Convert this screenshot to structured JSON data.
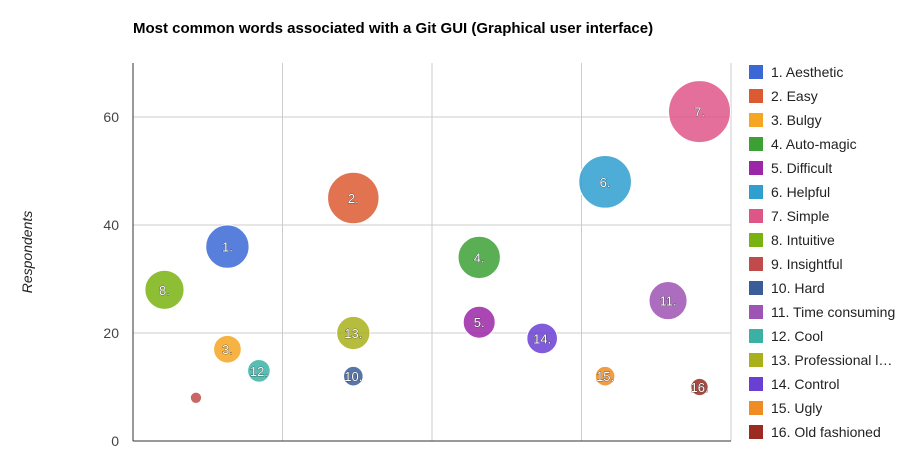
{
  "chart_data": {
    "type": "bubble",
    "title": "Most common words associated with a Git GUI (Graphical user interface)",
    "ylabel": "Respondents",
    "xlabel": "",
    "ylim": [
      0,
      70
    ],
    "xlim": [
      0,
      190
    ],
    "yticks": [
      "0",
      "20",
      "40",
      "60"
    ],
    "grid": true,
    "legend_position": "right",
    "series": [
      {
        "label": "1.",
        "name": "1. Aesthetic",
        "x": 30,
        "y": 36,
        "size": 44,
        "color": "#3c68d6"
      },
      {
        "label": "2.",
        "name": "2. Easy",
        "x": 70,
        "y": 45,
        "size": 62,
        "color": "#dc5a32"
      },
      {
        "label": "3.",
        "name": "3. Bulgy",
        "x": 30,
        "y": 17,
        "size": 18,
        "color": "#f5a623"
      },
      {
        "label": "4.",
        "name": "4. Auto-magic",
        "x": 110,
        "y": 34,
        "size": 42,
        "color": "#3da035"
      },
      {
        "label": "5.",
        "name": "5. Difficult",
        "x": 110,
        "y": 22,
        "size": 24,
        "color": "#9b27a8"
      },
      {
        "label": "6.",
        "name": "6. Helpful",
        "x": 150,
        "y": 48,
        "size": 65,
        "color": "#2f9fcf"
      },
      {
        "label": "7.",
        "name": "7. Simple",
        "x": 180,
        "y": 61,
        "size": 90,
        "color": "#de5688"
      },
      {
        "label": "8.",
        "name": "8. Intuitive",
        "x": 10,
        "y": 28,
        "size": 36,
        "color": "#79b311"
      },
      {
        "label": "9.",
        "name": "9. Insightful",
        "x": 20,
        "y": 8,
        "size": 3,
        "color": "#c14b4b"
      },
      {
        "label": "10.",
        "name": "10. Hard",
        "x": 70,
        "y": 12,
        "size": 9,
        "color": "#3a5d9a"
      },
      {
        "label": "11.",
        "name": "11. Time consuming",
        "x": 170,
        "y": 26,
        "size": 34,
        "color": "#9e54b4"
      },
      {
        "label": "12.",
        "name": "12. Cool",
        "x": 40,
        "y": 13,
        "size": 12,
        "color": "#3bb1a6"
      },
      {
        "label": "13.",
        "name": "13. Professional l…",
        "x": 70,
        "y": 20,
        "size": 26,
        "color": "#a9b01c"
      },
      {
        "label": "14.",
        "name": "14. Control",
        "x": 130,
        "y": 19,
        "size": 22,
        "color": "#6a3fd4"
      },
      {
        "label": "15.",
        "name": "15. Ugly",
        "x": 150,
        "y": 12,
        "size": 9,
        "color": "#ef8c24"
      },
      {
        "label": "16.",
        "name": "16. Old fashioned",
        "x": 180,
        "y": 10,
        "size": 7,
        "color": "#9a2a22"
      }
    ]
  }
}
